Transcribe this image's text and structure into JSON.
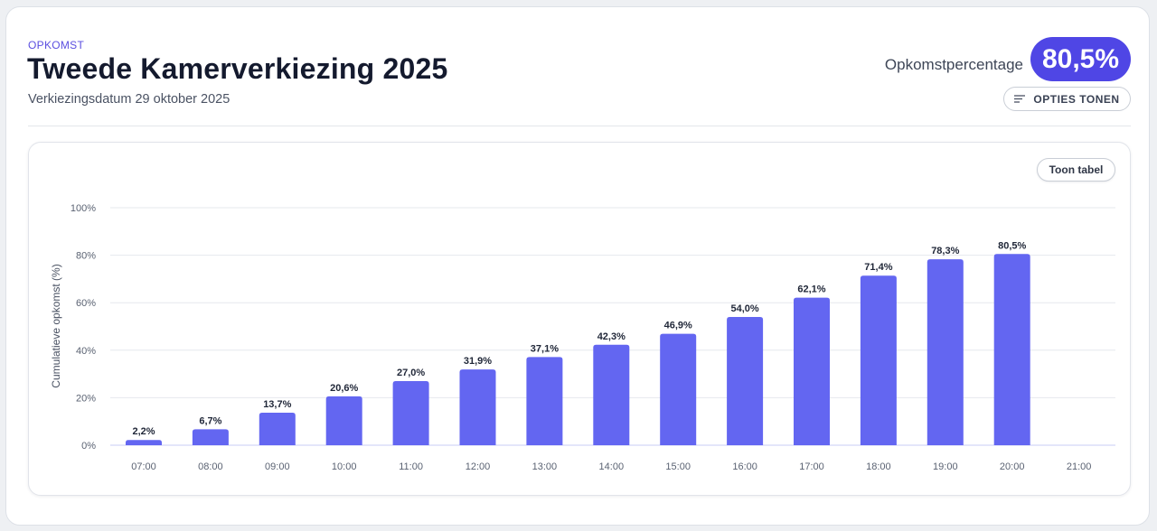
{
  "header": {
    "eyebrow": "OPKOMST",
    "title": "Tweede Kamerverkiezing 2025",
    "subtitle": "Verkiezingsdatum 29 oktober 2025",
    "turnout_label": "Opkomstpercentage",
    "turnout_value": "80,5%",
    "options_button": "OPTIES TONEN",
    "options_icon": "filter-lines-icon"
  },
  "chart_controls": {
    "table_button": "Toon tabel"
  },
  "colors": {
    "accent": "#4f46e5",
    "bar": "#6366f1",
    "grid": "#e6e8ee"
  },
  "chart_data": {
    "type": "bar",
    "categories": [
      "07:00",
      "08:00",
      "09:00",
      "10:00",
      "11:00",
      "12:00",
      "13:00",
      "14:00",
      "15:00",
      "16:00",
      "17:00",
      "18:00",
      "19:00",
      "20:00",
      "21:00"
    ],
    "values": [
      2.2,
      6.7,
      13.7,
      20.6,
      27.0,
      31.9,
      37.1,
      42.3,
      46.9,
      54.0,
      62.1,
      71.4,
      78.3,
      80.5,
      null
    ],
    "data_labels": [
      "2,2%",
      "6,7%",
      "13,7%",
      "20,6%",
      "27,0%",
      "31,9%",
      "37,1%",
      "42,3%",
      "46,9%",
      "54,0%",
      "62,1%",
      "71,4%",
      "78,3%",
      "80,5%",
      ""
    ],
    "ylabel": "Cumulatieve opkomst (%)",
    "yticks": [
      0,
      20,
      40,
      60,
      80,
      100
    ],
    "ytick_labels": [
      "0%",
      "20%",
      "40%",
      "60%",
      "80%",
      "100%"
    ],
    "ylim": [
      0,
      100
    ],
    "grid": true
  }
}
